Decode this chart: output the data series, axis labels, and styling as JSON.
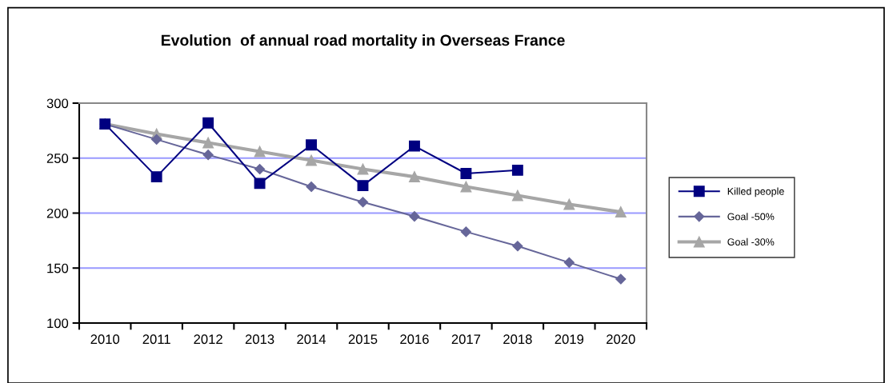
{
  "chart_data": {
    "type": "line",
    "title": "Evolution  of annual road mortality in Overseas France",
    "categories": [
      "2010",
      "2011",
      "2012",
      "2013",
      "2014",
      "2015",
      "2016",
      "2017",
      "2018",
      "2019",
      "2020"
    ],
    "series": [
      {
        "name": "Killed people",
        "color": "#000080",
        "marker": "square",
        "values": [
          281,
          233,
          282,
          227,
          262,
          225,
          261,
          236,
          239,
          null,
          null
        ]
      },
      {
        "name": "Goal -50%",
        "color": "#666699",
        "marker": "diamond",
        "values": [
          281,
          267,
          253,
          240,
          224,
          210,
          197,
          183,
          170,
          155,
          140
        ]
      },
      {
        "name": "Goal -30%",
        "color": "#a6a6a6",
        "marker": "triangle",
        "values": [
          281,
          272,
          264,
          256,
          248,
          240,
          233,
          224,
          216,
          208,
          201
        ]
      }
    ],
    "ylim": [
      100,
      300
    ],
    "yticks": [
      100,
      150,
      200,
      250,
      300
    ],
    "grid": "y",
    "legend": "right",
    "line_style": "solid"
  }
}
